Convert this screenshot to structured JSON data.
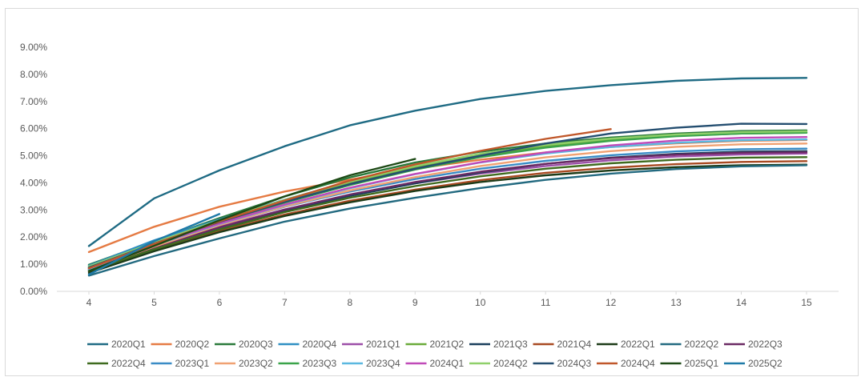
{
  "chart_data": {
    "type": "line",
    "title": "",
    "xlabel": "",
    "ylabel": "",
    "x": [
      4,
      5,
      6,
      7,
      8,
      9,
      10,
      11,
      12,
      13,
      14,
      15
    ],
    "ylim": [
      0,
      0.09
    ],
    "y_ticks": [
      "0.00%",
      "1.00%",
      "2.00%",
      "3.00%",
      "4.00%",
      "5.00%",
      "6.00%",
      "7.00%",
      "8.00%",
      "9.00%"
    ],
    "y_tick_values": [
      0,
      0.01,
      0.02,
      0.03,
      0.04,
      0.05,
      0.06,
      0.07,
      0.08,
      0.09
    ],
    "x_ticks": [
      "4",
      "5",
      "6",
      "7",
      "8",
      "9",
      "10",
      "11",
      "12",
      "13",
      "14",
      "15"
    ],
    "grid": false,
    "legend_position": "bottom",
    "series": [
      {
        "name": "2020Q1",
        "color": "#1f6b84",
        "values": [
          0.0167,
          0.0343,
          0.0446,
          0.0535,
          0.0612,
          0.0666,
          0.0709,
          0.0739,
          0.076,
          0.0776,
          0.0785,
          0.0787
        ]
      },
      {
        "name": "2020Q2",
        "color": "#e57b44",
        "values": [
          0.0145,
          0.0238,
          0.0312,
          0.0368,
          0.0412,
          0.0452,
          0.0485,
          0.0512,
          0.0532,
          0.0546,
          0.0555,
          0.0558
        ]
      },
      {
        "name": "2020Q3",
        "color": "#2b7a3b",
        "values": [
          0.0098,
          0.0185,
          0.027,
          0.035,
          0.042,
          0.0475,
          0.0515,
          0.0545,
          0.0567,
          0.0582,
          0.0591,
          0.0593
        ]
      },
      {
        "name": "2020Q4",
        "color": "#2f8fc3",
        "values": [
          0.0095,
          0.0188,
          0.0265,
          0.0338,
          0.0405,
          0.0462,
          0.0505,
          0.0538,
          0.056,
          0.0575,
          0.0584,
          0.0587
        ]
      },
      {
        "name": "2021Q1",
        "color": "#9c4fa8",
        "values": [
          0.0085,
          0.0165,
          0.0238,
          0.0302,
          0.0355,
          0.0398,
          0.0434,
          0.0462,
          0.0483,
          0.0497,
          0.0505,
          0.0508
        ]
      },
      {
        "name": "2021Q2",
        "color": "#6aaa3a",
        "values": [
          0.009,
          0.0178,
          0.0258,
          0.0332,
          0.0398,
          0.0457,
          0.0502,
          0.0535,
          0.0558,
          0.0573,
          0.0582,
          0.0585
        ]
      },
      {
        "name": "2021Q3",
        "color": "#1b3f5c",
        "values": [
          0.0078,
          0.0162,
          0.0235,
          0.0298,
          0.0352,
          0.0398,
          0.0438,
          0.047,
          0.0493,
          0.0507,
          0.0515,
          0.0517
        ]
      },
      {
        "name": "2021Q4",
        "color": "#a84a22",
        "values": [
          0.0072,
          0.0152,
          0.0222,
          0.0283,
          0.0334,
          0.0375,
          0.041,
          0.0437,
          0.0456,
          0.0469,
          0.0477,
          0.048
        ]
      },
      {
        "name": "2022Q1",
        "color": "#1d3b18",
        "values": [
          0.0068,
          0.0148,
          0.0218,
          0.0278,
          0.0328,
          0.037,
          0.0403,
          0.0428,
          0.0446,
          0.0458,
          0.0465,
          0.0467
        ]
      },
      {
        "name": "2022Q2",
        "color": "#236a80",
        "values": [
          0.0058,
          0.013,
          0.0195,
          0.0257,
          0.0305,
          0.0345,
          0.0381,
          0.0411,
          0.0434,
          0.0451,
          0.0461,
          0.0465
        ]
      },
      {
        "name": "2022Q3",
        "color": "#6b2a63",
        "values": [
          0.0082,
          0.0162,
          0.0236,
          0.0301,
          0.0357,
          0.0403,
          0.0441,
          0.047,
          0.0491,
          0.0504,
          0.0511,
          0.0513
        ]
      },
      {
        "name": "2022Q4",
        "color": "#3f6b1f",
        "values": [
          0.0075,
          0.0155,
          0.0228,
          0.0292,
          0.0345,
          0.0388,
          0.0424,
          0.0452,
          0.0472,
          0.0485,
          0.0493,
          0.0495
        ]
      },
      {
        "name": "2023Q1",
        "color": "#3a8cc6",
        "values": [
          0.0082,
          0.0168,
          0.0245,
          0.0312,
          0.0368,
          0.0414,
          0.0452,
          0.0481,
          0.0502,
          0.0516,
          0.0524,
          0.0526
        ]
      },
      {
        "name": "2023Q2",
        "color": "#f0a172",
        "values": [
          0.0078,
          0.0165,
          0.0244,
          0.0313,
          0.0372,
          0.0421,
          0.0462,
          0.0494,
          0.0517,
          0.0533,
          0.0542,
          0.0545
        ]
      },
      {
        "name": "2023Q3",
        "color": "#3aa34a",
        "values": [
          0.0088,
          0.0175,
          0.0254,
          0.0327,
          0.0392,
          0.0449,
          0.0495,
          0.053,
          0.0555,
          0.0572,
          0.0582,
          0.0585
        ]
      },
      {
        "name": "2023Q4",
        "color": "#5bb8e0",
        "values": [
          0.008,
          0.017,
          0.0248,
          0.0318,
          0.038,
          0.0432,
          0.0475,
          0.0508,
          0.0532,
          0.0548,
          0.0557,
          0.056
        ]
      },
      {
        "name": "2024Q1",
        "color": "#c04ab8",
        "values": [
          0.0085,
          0.0172,
          0.025,
          0.032,
          0.0382,
          0.0433,
          0.0476,
          0.0512,
          0.0538,
          0.0556,
          0.0566,
          0.0569
        ]
      },
      {
        "name": "2024Q2",
        "color": "#8fd06a",
        "values": [
          0.0092,
          0.018,
          0.0262,
          0.0337,
          0.0405,
          0.0462,
          0.0507,
          0.054,
          0.0563,
          0.0578,
          0.0587,
          0.059
        ]
      },
      {
        "name": "2024Q3",
        "color": "#244e70",
        "values": [
          0.0088,
          0.0176,
          0.0256,
          0.033,
          0.0395,
          0.0452,
          0.05,
          0.0545,
          0.0582,
          0.0603,
          0.0618,
          0.0617
        ]
      },
      {
        "name": "2024Q4",
        "color": "#c0572a",
        "values": [
          0.0085,
          0.0175,
          0.0258,
          0.0335,
          0.0408,
          0.0468,
          0.0518,
          0.0562,
          0.0598,
          null,
          null,
          null
        ]
      },
      {
        "name": "2025Q1",
        "color": "#1e4a16",
        "values": [
          0.0075,
          0.0168,
          0.0262,
          0.035,
          0.0428,
          0.0488,
          null,
          null,
          null,
          null,
          null,
          null
        ]
      },
      {
        "name": "2025Q2",
        "color": "#1e7aa8",
        "values": [
          0.0062,
          0.0185,
          0.0285,
          null,
          null,
          null,
          null,
          null,
          null,
          null,
          null,
          null
        ]
      }
    ]
  }
}
